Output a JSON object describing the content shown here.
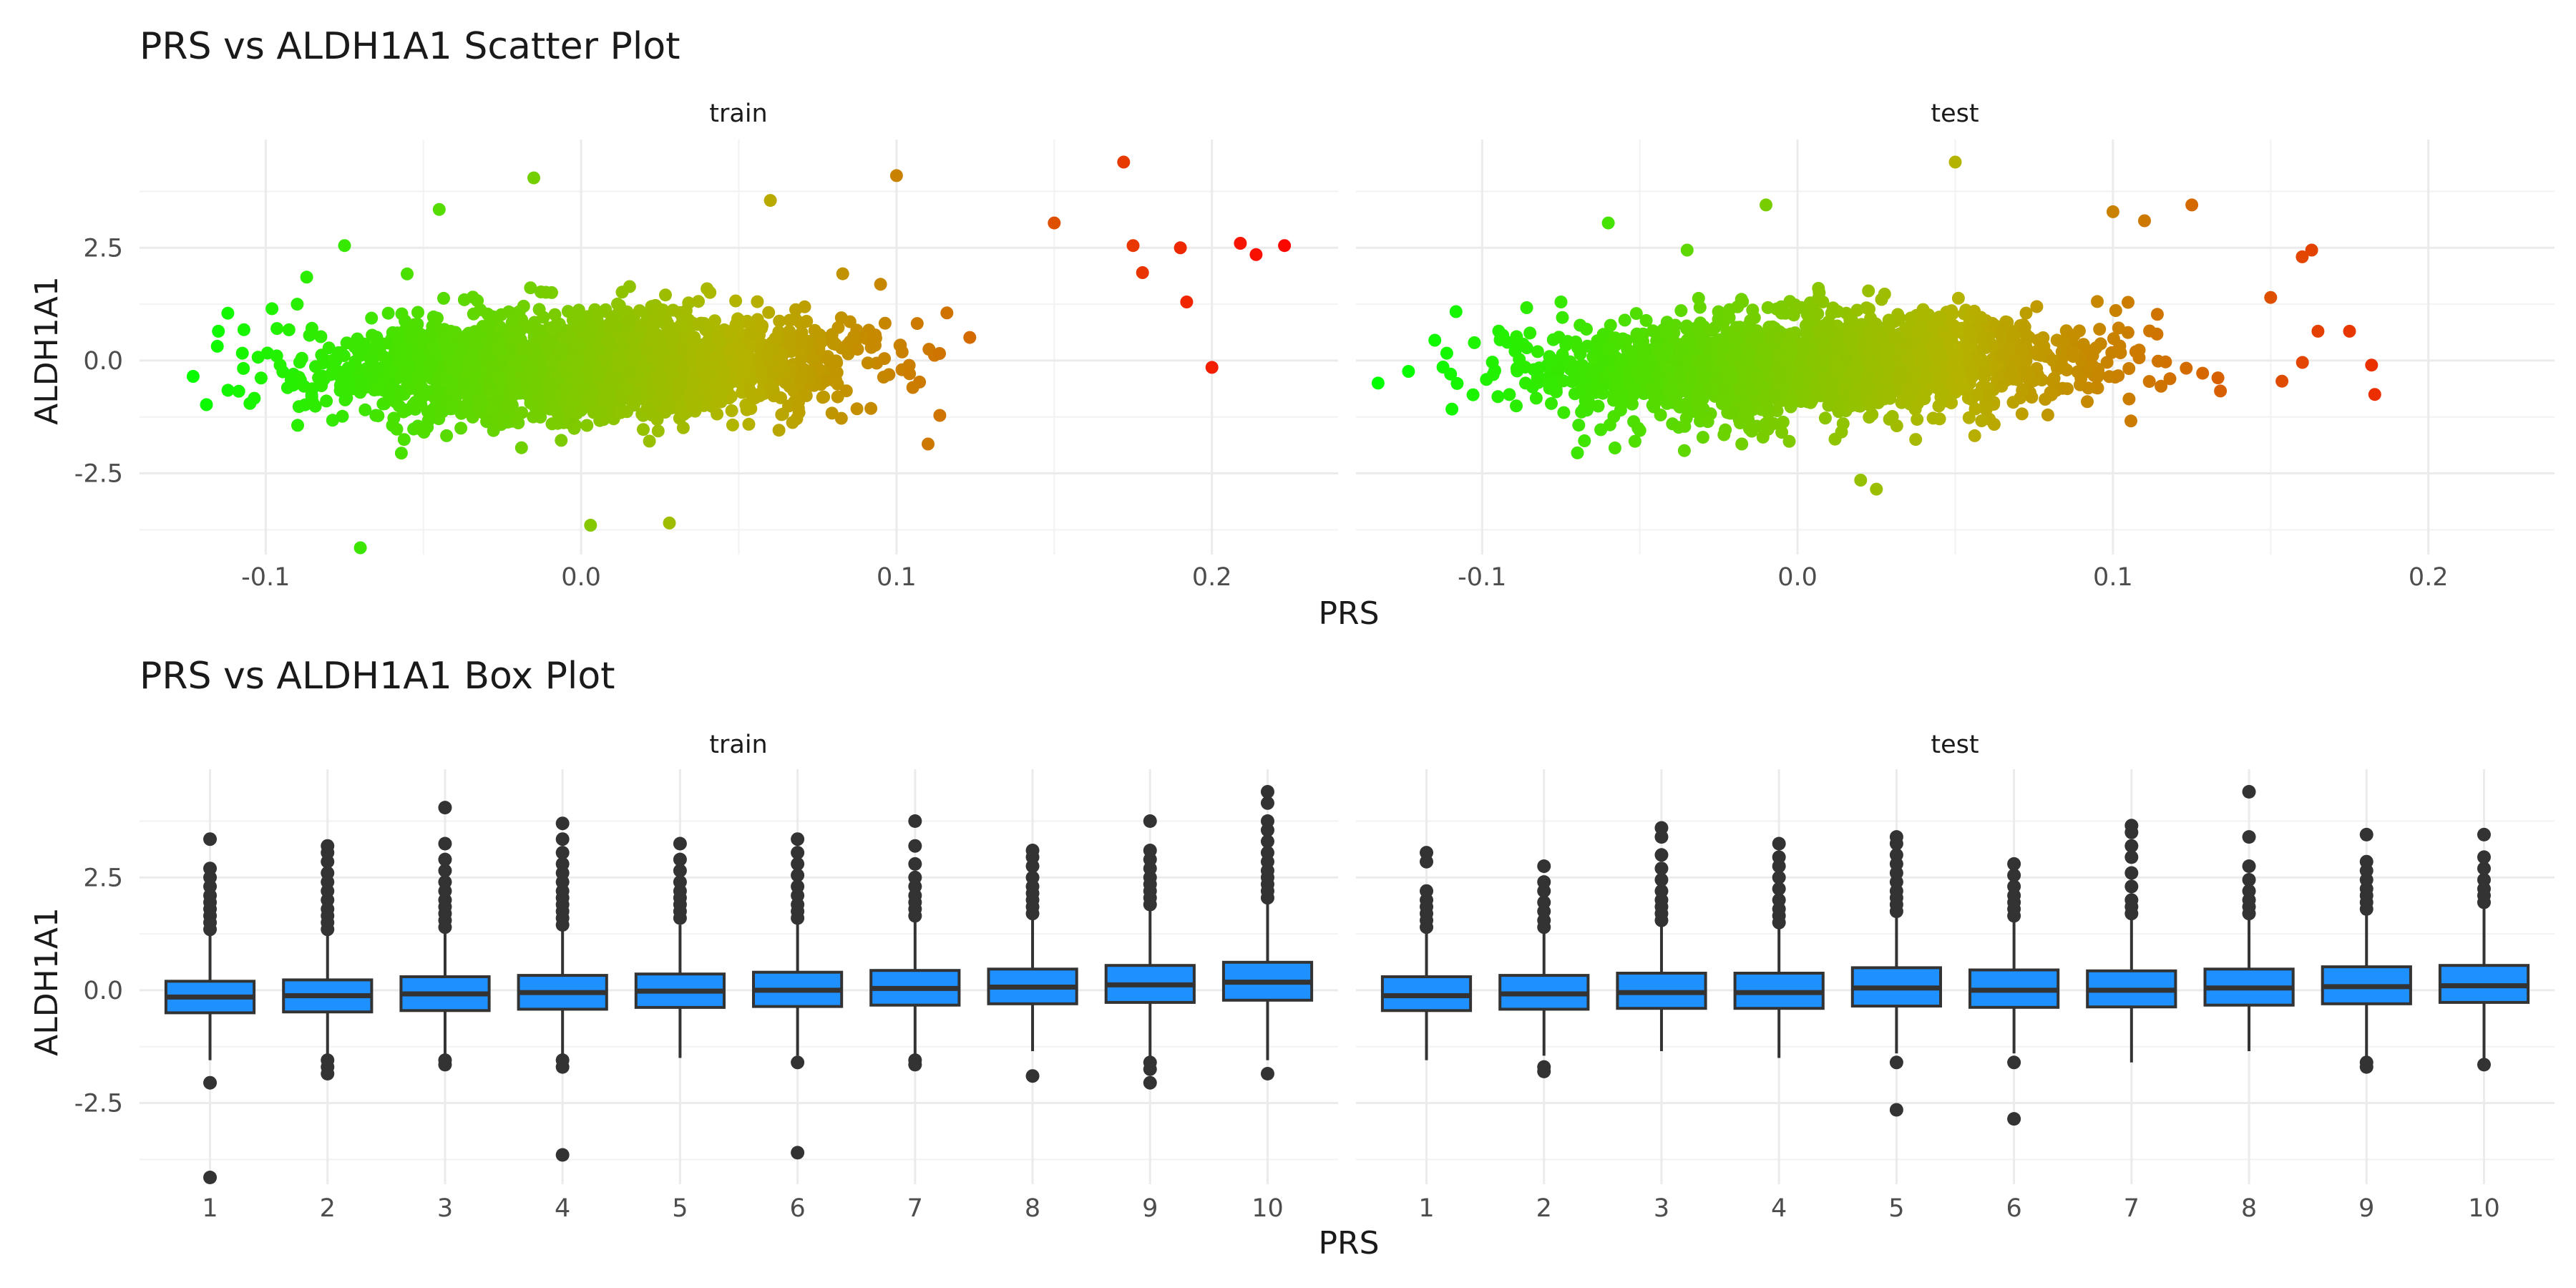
{
  "colors": {
    "low": "#00ff00",
    "mid": "#b4b400",
    "high": "#ff0000",
    "box_fill": "#1e90ff",
    "box_line": "#333333",
    "outlier": "#333333"
  },
  "chart_data": [
    {
      "type": "scatter",
      "title": "PRS vs ALDH1A1 Scatter Plot",
      "xlabel": "PRS",
      "ylabel": "ALDH1A1",
      "xlim": [
        -0.14,
        0.24
      ],
      "ylim": [
        -4.3,
        4.9
      ],
      "x_ticks": [
        -0.1,
        0.0,
        0.1,
        0.2
      ],
      "x_tick_labels": [
        "-0.1",
        "0.0",
        "0.1",
        "0.2"
      ],
      "y_ticks": [
        -2.5,
        0.0,
        2.5
      ],
      "y_tick_labels": [
        "-2.5",
        "0.0",
        "2.5"
      ],
      "color_by": "x",
      "color_range": [
        -0.13,
        0.23
      ],
      "panels": [
        {
          "label": "train",
          "x_center": 0.0,
          "x_sd": 0.04,
          "y_center": -0.1,
          "y_sd": 0.55,
          "point_cloud_n": 2600,
          "seed": 11,
          "extreme_points": [
            [
              -0.123,
              -0.35
            ],
            [
              -0.115,
              0.65
            ],
            [
              -0.112,
              1.05
            ],
            [
              -0.105,
              -0.95
            ],
            [
              -0.098,
              1.15
            ],
            [
              -0.09,
              1.25
            ],
            [
              -0.087,
              1.85
            ],
            [
              -0.075,
              2.55
            ],
            [
              -0.07,
              -4.15
            ],
            [
              -0.057,
              -2.05
            ],
            [
              -0.045,
              3.35
            ],
            [
              -0.015,
              4.05
            ],
            [
              0.003,
              -3.65
            ],
            [
              0.028,
              -3.6
            ],
            [
              0.06,
              3.55
            ],
            [
              0.1,
              4.1
            ],
            [
              0.11,
              -1.85
            ],
            [
              0.15,
              3.05
            ],
            [
              0.172,
              4.4
            ],
            [
              0.175,
              2.55
            ],
            [
              0.178,
              1.95
            ],
            [
              0.19,
              2.5
            ],
            [
              0.192,
              1.3
            ],
            [
              0.2,
              -0.15
            ],
            [
              0.209,
              2.6
            ],
            [
              0.214,
              2.35
            ],
            [
              0.223,
              2.55
            ]
          ]
        },
        {
          "label": "test",
          "x_center": 0.005,
          "x_sd": 0.042,
          "y_center": -0.1,
          "y_sd": 0.55,
          "point_cloud_n": 2200,
          "seed": 29,
          "extreme_points": [
            [
              -0.133,
              -0.5
            ],
            [
              -0.115,
              0.45
            ],
            [
              -0.11,
              -0.3
            ],
            [
              -0.095,
              -0.8
            ],
            [
              -0.075,
              1.3
            ],
            [
              -0.06,
              3.05
            ],
            [
              -0.05,
              -1.55
            ],
            [
              -0.035,
              2.45
            ],
            [
              -0.03,
              -1.7
            ],
            [
              -0.01,
              3.45
            ],
            [
              0.02,
              -2.65
            ],
            [
              0.025,
              -2.85
            ],
            [
              0.05,
              4.4
            ],
            [
              0.1,
              3.3
            ],
            [
              0.11,
              3.1
            ],
            [
              0.125,
              3.45
            ],
            [
              0.15,
              1.4
            ],
            [
              0.16,
              2.3
            ],
            [
              0.163,
              2.45
            ],
            [
              0.165,
              0.65
            ],
            [
              0.175,
              0.65
            ],
            [
              0.182,
              -0.1
            ],
            [
              0.183,
              -0.75
            ]
          ]
        }
      ]
    },
    {
      "type": "box",
      "title": "PRS vs ALDH1A1 Box Plot",
      "xlabel": "PRS",
      "ylabel": "ALDH1A1",
      "categories": [
        "1",
        "2",
        "3",
        "4",
        "5",
        "6",
        "7",
        "8",
        "9",
        "10"
      ],
      "ylim": [
        -4.3,
        4.9
      ],
      "y_ticks": [
        -2.5,
        0.0,
        2.5
      ],
      "y_tick_labels": [
        "-2.5",
        "0.0",
        "2.5"
      ],
      "panels": [
        {
          "label": "train",
          "boxes": [
            {
              "q1": -0.5,
              "median": -0.15,
              "q3": 0.2,
              "lo": -1.55,
              "hi": 1.25,
              "outliers": [
                1.35,
                1.5,
                1.65,
                1.8,
                1.95,
                2.1,
                2.3,
                2.5,
                2.7,
                3.35,
                -2.05,
                -4.15
              ]
            },
            {
              "q1": -0.48,
              "median": -0.12,
              "q3": 0.23,
              "lo": -1.5,
              "hi": 1.25,
              "outliers": [
                1.35,
                1.5,
                1.65,
                1.8,
                2.0,
                2.2,
                2.4,
                2.6,
                2.85,
                3.05,
                3.2,
                -1.55,
                -1.7,
                -1.85
              ]
            },
            {
              "q1": -0.45,
              "median": -0.08,
              "q3": 0.3,
              "lo": -1.45,
              "hi": 1.3,
              "outliers": [
                1.4,
                1.55,
                1.7,
                1.85,
                2.0,
                2.2,
                2.4,
                2.65,
                2.9,
                3.25,
                4.05,
                -1.55,
                -1.65
              ]
            },
            {
              "q1": -0.42,
              "median": -0.05,
              "q3": 0.33,
              "lo": -1.45,
              "hi": 1.35,
              "outliers": [
                1.45,
                1.6,
                1.75,
                1.9,
                2.05,
                2.2,
                2.4,
                2.6,
                2.8,
                3.05,
                3.35,
                3.7,
                -1.55,
                -1.7,
                -3.65
              ]
            },
            {
              "q1": -0.38,
              "median": -0.02,
              "q3": 0.36,
              "lo": -1.5,
              "hi": 1.45,
              "outliers": [
                1.6,
                1.75,
                1.9,
                2.05,
                2.2,
                2.4,
                2.65,
                2.9,
                3.25
              ]
            },
            {
              "q1": -0.36,
              "median": 0.0,
              "q3": 0.4,
              "lo": -1.45,
              "hi": 1.5,
              "outliers": [
                1.6,
                1.75,
                1.9,
                2.1,
                2.3,
                2.55,
                2.8,
                3.05,
                3.35,
                -1.6,
                -3.6
              ]
            },
            {
              "q1": -0.33,
              "median": 0.04,
              "q3": 0.44,
              "lo": -1.45,
              "hi": 1.55,
              "outliers": [
                1.65,
                1.8,
                1.95,
                2.1,
                2.3,
                2.5,
                2.8,
                3.2,
                3.75,
                -1.55,
                -1.65
              ]
            },
            {
              "q1": -0.3,
              "median": 0.07,
              "q3": 0.47,
              "lo": -1.35,
              "hi": 1.6,
              "outliers": [
                1.7,
                1.85,
                2.0,
                2.15,
                2.3,
                2.5,
                2.75,
                2.95,
                3.1,
                -1.9
              ]
            },
            {
              "q1": -0.27,
              "median": 0.12,
              "q3": 0.55,
              "lo": -1.5,
              "hi": 1.8,
              "outliers": [
                1.9,
                2.05,
                2.2,
                2.35,
                2.5,
                2.7,
                2.9,
                3.1,
                3.75,
                -1.6,
                -1.75,
                -2.05
              ]
            },
            {
              "q1": -0.22,
              "median": 0.18,
              "q3": 0.62,
              "lo": -1.55,
              "hi": 1.95,
              "outliers": [
                2.05,
                2.2,
                2.35,
                2.5,
                2.65,
                2.85,
                3.05,
                3.3,
                3.55,
                3.75,
                4.15,
                4.4,
                -1.85
              ]
            }
          ]
        },
        {
          "label": "test",
          "boxes": [
            {
              "q1": -0.45,
              "median": -0.12,
              "q3": 0.3,
              "lo": -1.55,
              "hi": 1.3,
              "outliers": [
                1.4,
                1.55,
                1.7,
                1.85,
                2.0,
                2.2,
                2.85,
                3.05
              ]
            },
            {
              "q1": -0.42,
              "median": -0.08,
              "q3": 0.33,
              "lo": -1.45,
              "hi": 1.3,
              "outliers": [
                1.4,
                1.55,
                1.75,
                1.95,
                2.2,
                2.4,
                2.75,
                -1.7,
                -1.8
              ]
            },
            {
              "q1": -0.4,
              "median": -0.05,
              "q3": 0.38,
              "lo": -1.35,
              "hi": 1.45,
              "outliers": [
                1.55,
                1.7,
                1.85,
                2.0,
                2.2,
                2.45,
                2.7,
                3.0,
                3.4,
                3.6
              ]
            },
            {
              "q1": -0.4,
              "median": -0.05,
              "q3": 0.38,
              "lo": -1.5,
              "hi": 1.4,
              "outliers": [
                1.5,
                1.65,
                1.8,
                2.0,
                2.25,
                2.5,
                2.75,
                2.95,
                3.25
              ]
            },
            {
              "q1": -0.35,
              "median": 0.05,
              "q3": 0.5,
              "lo": -1.4,
              "hi": 1.65,
              "outliers": [
                1.75,
                1.9,
                2.05,
                2.2,
                2.4,
                2.6,
                2.8,
                3.0,
                3.25,
                3.4,
                -1.6,
                -2.65
              ]
            },
            {
              "q1": -0.38,
              "median": 0.0,
              "q3": 0.45,
              "lo": -1.4,
              "hi": 1.55,
              "outliers": [
                1.65,
                1.8,
                1.95,
                2.1,
                2.3,
                2.55,
                2.8,
                -1.6,
                -2.85
              ]
            },
            {
              "q1": -0.37,
              "median": 0.0,
              "q3": 0.43,
              "lo": -1.6,
              "hi": 1.6,
              "outliers": [
                1.7,
                1.85,
                2.0,
                2.3,
                2.6,
                2.95,
                3.2,
                3.5,
                3.65
              ]
            },
            {
              "q1": -0.33,
              "median": 0.05,
              "q3": 0.47,
              "lo": -1.35,
              "hi": 1.6,
              "outliers": [
                1.7,
                1.85,
                2.0,
                2.2,
                2.45,
                2.75,
                3.4,
                4.4
              ]
            },
            {
              "q1": -0.3,
              "median": 0.08,
              "q3": 0.52,
              "lo": -1.55,
              "hi": 1.7,
              "outliers": [
                1.8,
                1.95,
                2.1,
                2.25,
                2.45,
                2.65,
                2.85,
                3.45,
                -1.6,
                -1.7
              ]
            },
            {
              "q1": -0.27,
              "median": 0.1,
              "q3": 0.55,
              "lo": -1.55,
              "hi": 1.85,
              "outliers": [
                1.95,
                2.1,
                2.25,
                2.45,
                2.7,
                2.95,
                3.45,
                -1.65
              ]
            }
          ]
        }
      ]
    }
  ]
}
